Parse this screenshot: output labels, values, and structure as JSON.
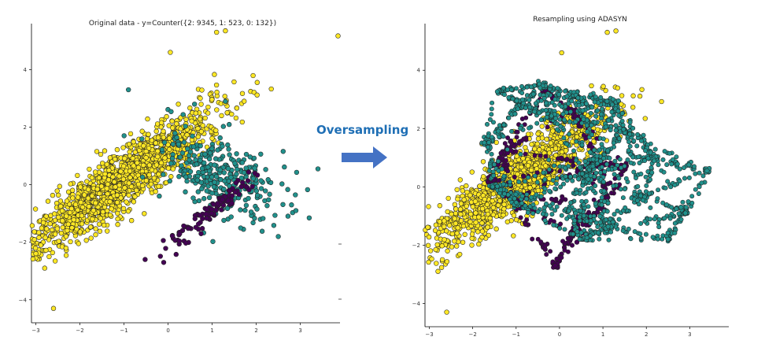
{
  "annotation": {
    "label": "Oversampling",
    "color": "#1F6FB5",
    "arrow_color": "#4472C4",
    "arrow_icon": "right-arrow-icon"
  },
  "chart_data": [
    {
      "type": "scatter",
      "title": "Original data - y=Counter({2: 9345, 1: 523, 0: 132})",
      "xlabel": "",
      "ylabel": "",
      "xlim": [
        -3.1,
        3.9
      ],
      "ylim": [
        -4.8,
        5.6
      ],
      "x_ticks": [
        -3,
        -2,
        -1,
        0,
        1,
        2,
        3
      ],
      "y_ticks": [
        -4,
        -2,
        0,
        2,
        4
      ],
      "grid": false,
      "legend": "none",
      "series": [
        {
          "class": 2,
          "count": 9345,
          "color": "#FDE725",
          "distribution": {
            "center": [
              -1.0,
              0.2
            ],
            "direction": [
              0.64,
              0.77
            ],
            "spread_major": 1.5,
            "spread_minor": 0.35
          },
          "outliers": [
            [
              -2.6,
              -4.3
            ],
            [
              1.3,
              5.35
            ],
            [
              1.1,
              5.3
            ],
            [
              0.05,
              4.6
            ],
            [
              -2.8,
              -2.9
            ],
            [
              -2.7,
              -2.5
            ]
          ]
        },
        {
          "class": 1,
          "count": 523,
          "color": "#21918C",
          "distribution": {
            "center": [
              1.15,
              0.3
            ],
            "direction": [
              0.6,
              -0.8
            ],
            "spread_major": 0.9,
            "spread_minor": 0.5
          },
          "outliers": [
            [
              3.4,
              0.55
            ],
            [
              2.5,
              -1.8
            ],
            [
              2.8,
              -0.7
            ],
            [
              2.9,
              -0.9
            ],
            [
              1.3,
              2.9
            ],
            [
              -0.9,
              3.3
            ],
            [
              0.6,
              2.8
            ]
          ]
        },
        {
          "class": 0,
          "count": 132,
          "color": "#440154",
          "distribution": {
            "center": [
              1.0,
              -0.9
            ],
            "direction": [
              0.62,
              0.79
            ],
            "spread_major": 0.85,
            "spread_minor": 0.12
          },
          "outliers": [
            [
              -0.1,
              -2.7
            ]
          ]
        }
      ]
    },
    {
      "type": "scatter",
      "title": "Resampling using ADASYN",
      "xlabel": "",
      "ylabel": "",
      "xlim": [
        -3.1,
        3.9
      ],
      "ylim": [
        -4.8,
        5.6
      ],
      "x_ticks": [
        -3,
        -2,
        -1,
        0,
        1,
        2,
        3
      ],
      "y_ticks": [
        -4,
        -2,
        0,
        2,
        4
      ],
      "grid": false,
      "legend": "none",
      "series": [
        {
          "class": 2,
          "color": "#FDE725",
          "distribution": {
            "center": [
              -1.0,
              0.2
            ],
            "direction": [
              0.64,
              0.77
            ],
            "spread_major": 1.5,
            "spread_minor": 0.35
          },
          "outliers": [
            [
              -2.6,
              -4.3
            ],
            [
              1.3,
              5.35
            ],
            [
              1.1,
              5.3
            ],
            [
              0.05,
              4.6
            ],
            [
              -2.8,
              -2.9
            ],
            [
              -2.7,
              -2.5
            ]
          ]
        },
        {
          "class": 1,
          "color": "#21918C",
          "anchors": [
            [
              -1.4,
              3.3
            ],
            [
              -0.4,
              3.5
            ],
            [
              0.4,
              3.1
            ],
            [
              1.3,
              2.9
            ],
            [
              -1.7,
              1.5
            ],
            [
              -0.2,
              2.4
            ],
            [
              1.5,
              1.9
            ],
            [
              2.2,
              1.0
            ],
            [
              -1.5,
              0.0
            ],
            [
              0.6,
              0.4
            ],
            [
              1.9,
              -0.3
            ],
            [
              -1.0,
              -0.6
            ],
            [
              0.2,
              -0.8
            ],
            [
              1.1,
              -1.4
            ],
            [
              0.5,
              -1.8
            ],
            [
              2.5,
              -1.8
            ],
            [
              3.4,
              0.55
            ],
            [
              2.9,
              -0.9
            ],
            [
              -0.9,
              2.8
            ],
            [
              0.9,
              1.0
            ]
          ],
          "outliers": [
            [
              3.4,
              0.55
            ],
            [
              2.5,
              -1.8
            ],
            [
              2.8,
              -0.7
            ],
            [
              2.9,
              -0.9
            ]
          ]
        },
        {
          "class": 0,
          "color": "#440154",
          "anchors": [
            [
              -0.3,
              3.3
            ],
            [
              0.3,
              2.6
            ],
            [
              -1.3,
              1.2
            ],
            [
              -1.6,
              0.2
            ],
            [
              -1.1,
              -0.4
            ],
            [
              0.9,
              0.8
            ],
            [
              1.5,
              0.7
            ],
            [
              0.3,
              -1.6
            ],
            [
              -0.1,
              -2.7
            ],
            [
              1.1,
              -0.5
            ]
          ],
          "outliers": [
            [
              -0.1,
              -2.7
            ],
            [
              0.4,
              -1.9
            ]
          ]
        }
      ]
    }
  ]
}
